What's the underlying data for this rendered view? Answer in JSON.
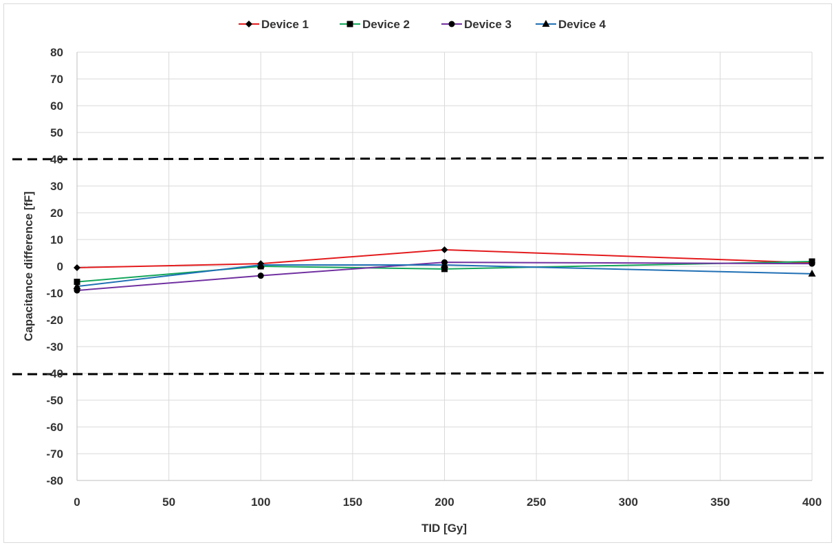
{
  "chart_data": {
    "type": "line",
    "title": "",
    "xlabel": "TID [Gy]",
    "ylabel": "Capacitance difference [fF]",
    "xlim": [
      0,
      400
    ],
    "ylim": [
      -80,
      80
    ],
    "xticks": [
      0,
      50,
      100,
      150,
      200,
      250,
      300,
      350,
      400
    ],
    "yticks": [
      80,
      70,
      60,
      50,
      40,
      30,
      20,
      10,
      0,
      -10,
      -20,
      -30,
      -40,
      -50,
      -60,
      -70,
      -80
    ],
    "grid": true,
    "legend_position": "top",
    "x": [
      0,
      100,
      200,
      400
    ],
    "series": [
      {
        "name": "Device 1",
        "color": "#e31a1c",
        "marker": "diamond",
        "values": [
          -0.5,
          1,
          6.2,
          1.3
        ]
      },
      {
        "name": "Device 2",
        "color": "#12a65a",
        "marker": "square",
        "values": [
          -5.8,
          0,
          -1,
          1.8
        ]
      },
      {
        "name": "Device 3",
        "color": "#7030a0",
        "marker": "circle",
        "values": [
          -9,
          -3.5,
          1.5,
          1
        ]
      },
      {
        "name": "Device 4",
        "color": "#1f6fb4",
        "marker": "triangle",
        "values": [
          -7.5,
          0.5,
          0.5,
          -2.8
        ]
      }
    ],
    "reference_lines": [
      {
        "y_start": 40,
        "y_end": 40.5,
        "style": "dashed",
        "color": "#000000"
      },
      {
        "y_start": -40.3,
        "y_end": -39.8,
        "style": "dashed",
        "color": "#000000"
      }
    ]
  }
}
